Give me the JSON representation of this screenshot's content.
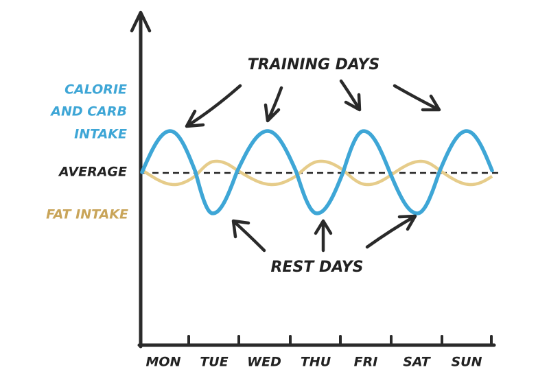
{
  "annotations": {
    "training": "TRAINING DAYS",
    "rest": "REST DAYS"
  },
  "legend": {
    "calorie": [
      "CALORIE",
      "AND CARB",
      "INTAKE"
    ],
    "average": "AVERAGE",
    "fat": "FAT INTAKE"
  },
  "days": [
    "MON",
    "TUE",
    "WED",
    "THU",
    "FRI",
    "SAT",
    "SUN"
  ]
}
